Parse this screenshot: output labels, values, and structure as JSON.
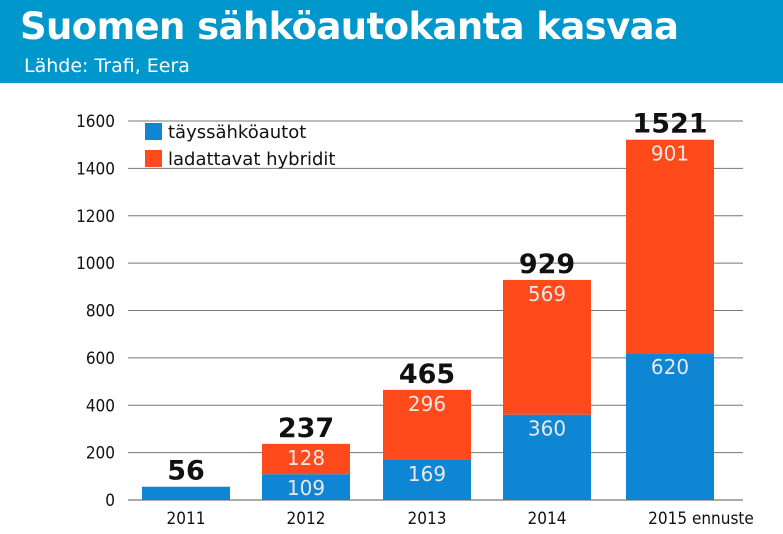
{
  "header": {
    "title": "Suomen sähköautokanta kasvaa",
    "source": "Lähde: Trafi, Eera"
  },
  "colors": {
    "header_bg": "#0098cc",
    "full_electric": "#0f86d4",
    "plug_in_hybrid": "#ff4a1c",
    "grid": "#777777"
  },
  "chart_data": {
    "type": "bar",
    "stacked": true,
    "categories": [
      "2011",
      "2012",
      "2013",
      "2014",
      "2015 ennuste"
    ],
    "series": [
      {
        "name": "täyssähköautot",
        "values": [
          56,
          109,
          169,
          360,
          620
        ],
        "labels": [
          "",
          "109",
          "169",
          "360",
          "620"
        ]
      },
      {
        "name": "ladattavat hybridit",
        "values": [
          0,
          128,
          296,
          569,
          901
        ],
        "labels": [
          "",
          "128",
          "296",
          "569",
          "901"
        ]
      }
    ],
    "totals": [
      "56",
      "237",
      "465",
      "929",
      "1521"
    ],
    "yticks": [
      "0",
      "200",
      "400",
      "600",
      "800",
      "1000",
      "1200",
      "1400",
      "1600"
    ],
    "ylim": [
      0,
      1600
    ],
    "grid": true,
    "legend": "top-left"
  }
}
